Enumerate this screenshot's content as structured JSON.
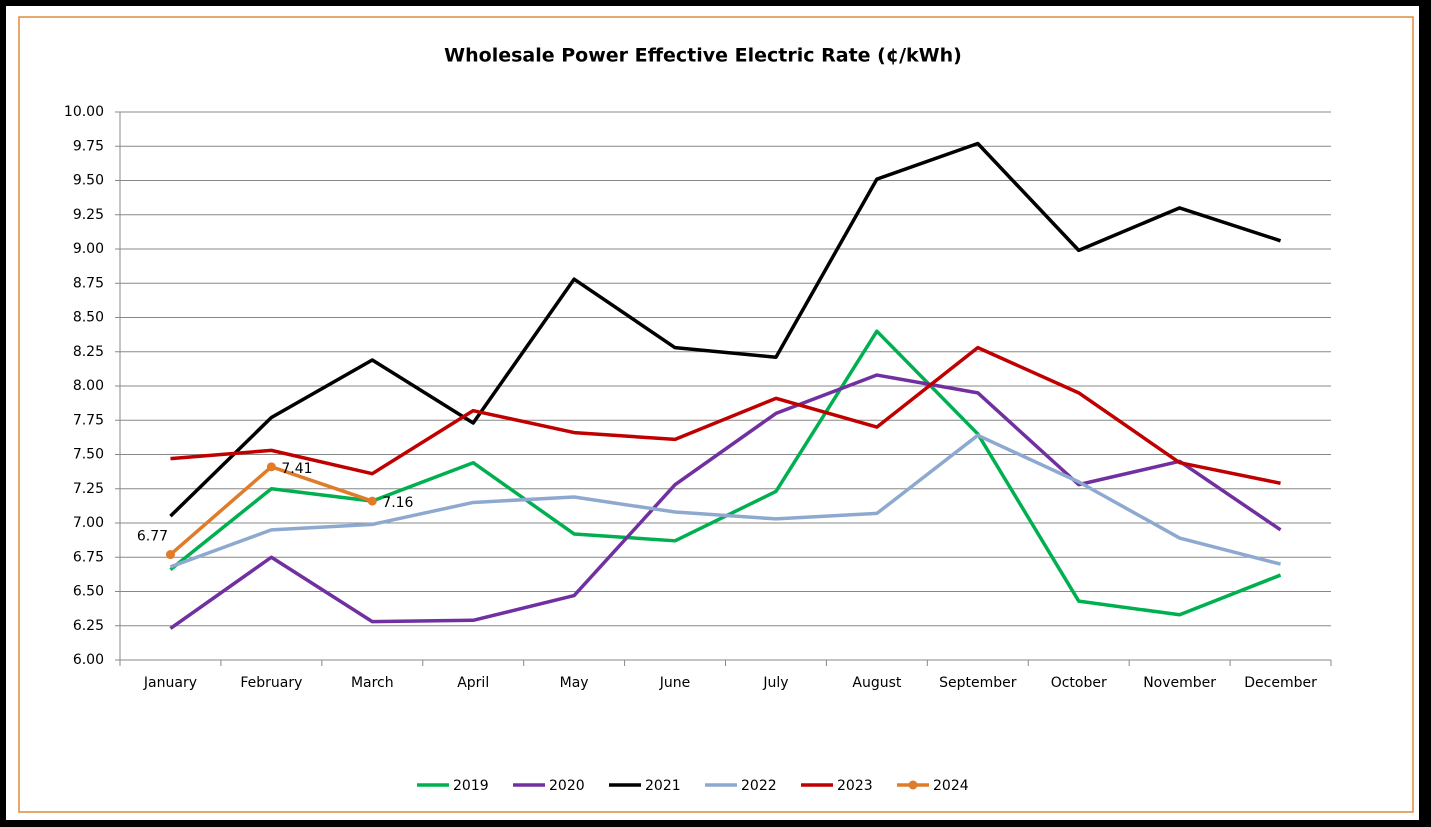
{
  "chart_data": {
    "type": "line",
    "title": "Wholesale Power Effective Electric Rate (¢/kWh)",
    "categories": [
      "January",
      "February",
      "March",
      "April",
      "May",
      "June",
      "July",
      "August",
      "September",
      "October",
      "November",
      "December"
    ],
    "series": [
      {
        "name": "2019",
        "color": "#00b050",
        "values": [
          6.66,
          7.25,
          7.16,
          7.44,
          6.92,
          6.87,
          7.23,
          8.4,
          7.65,
          6.43,
          6.33,
          6.62
        ]
      },
      {
        "name": "2020",
        "color": "#7030a0",
        "values": [
          6.23,
          6.75,
          6.28,
          6.29,
          6.47,
          7.28,
          7.8,
          8.08,
          7.95,
          7.28,
          7.45,
          6.95
        ]
      },
      {
        "name": "2021",
        "color": "#000000",
        "values": [
          7.05,
          7.77,
          8.19,
          7.73,
          8.78,
          8.28,
          8.21,
          9.51,
          9.77,
          8.99,
          9.3,
          9.06
        ]
      },
      {
        "name": "2022",
        "color": "#8ea9cf",
        "values": [
          6.68,
          6.95,
          6.99,
          7.15,
          7.19,
          7.08,
          7.03,
          7.07,
          7.64,
          7.3,
          6.89,
          6.7
        ]
      },
      {
        "name": "2023",
        "color": "#c00000",
        "values": [
          7.47,
          7.53,
          7.36,
          7.82,
          7.66,
          7.61,
          7.91,
          7.7,
          8.28,
          7.95,
          7.44,
          7.29
        ]
      },
      {
        "name": "2024",
        "color": "#e07b2a",
        "markers": true,
        "data_labels": true,
        "values": [
          6.77,
          7.41,
          7.16,
          null,
          null,
          null,
          null,
          null,
          null,
          null,
          null,
          null
        ]
      }
    ],
    "ylim": [
      6,
      10
    ],
    "yticks": [
      {
        "value": 6,
        "label": "6.00"
      },
      {
        "value": 6.25,
        "label": "6.25"
      },
      {
        "value": 6.5,
        "label": "6.50"
      },
      {
        "value": 6.75,
        "label": "6.75"
      },
      {
        "value": 7,
        "label": "7.00"
      },
      {
        "value": 7.25,
        "label": "7.25"
      },
      {
        "value": 7.5,
        "label": "7.50"
      },
      {
        "value": 7.75,
        "label": "7.75"
      },
      {
        "value": 8,
        "label": "8.00"
      },
      {
        "value": 8.25,
        "label": "8.25"
      },
      {
        "value": 8.5,
        "label": "8.50"
      },
      {
        "value": 8.75,
        "label": "8.75"
      },
      {
        "value": 9,
        "label": "9.00"
      },
      {
        "value": 9.25,
        "label": "9.25"
      },
      {
        "value": 9.5,
        "label": "9.50"
      },
      {
        "value": 9.75,
        "label": "9.75"
      },
      {
        "value": 10,
        "label": "10.00"
      }
    ],
    "grid": true,
    "legend": "bottom"
  }
}
